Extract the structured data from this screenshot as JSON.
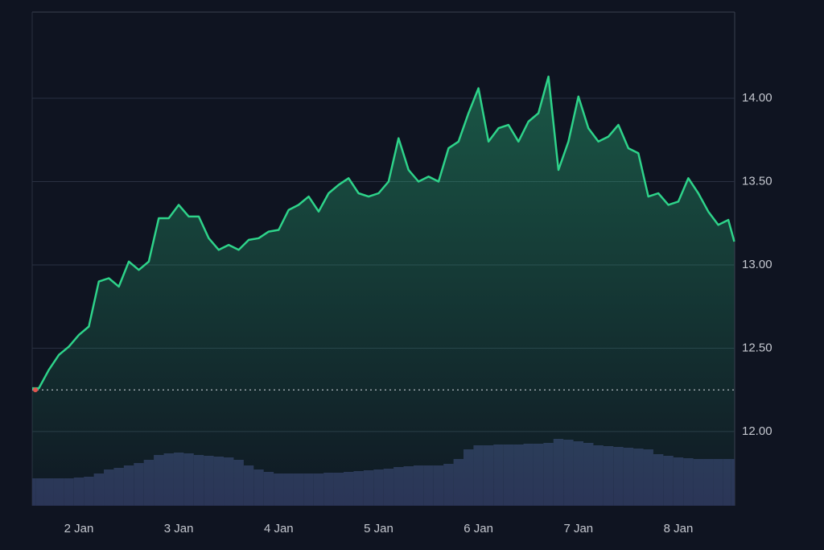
{
  "chart_data": {
    "type": "line",
    "x": [
      1.533,
      1.6,
      1.7,
      1.8,
      1.9,
      2.0,
      2.1,
      2.2,
      2.3,
      2.4,
      2.5,
      2.6,
      2.7,
      2.8,
      2.9,
      3.0,
      3.1,
      3.2,
      3.3,
      3.4,
      3.5,
      3.6,
      3.7,
      3.8,
      3.9,
      4.0,
      4.1,
      4.2,
      4.3,
      4.4,
      4.5,
      4.6,
      4.7,
      4.8,
      4.9,
      5.0,
      5.1,
      5.2,
      5.3,
      5.4,
      5.5,
      5.6,
      5.7,
      5.8,
      5.9,
      6.0,
      6.1,
      6.2,
      6.3,
      6.4,
      6.5,
      6.6,
      6.7,
      6.8,
      6.9,
      7.0,
      7.1,
      7.2,
      7.3,
      7.4,
      7.5,
      7.6,
      7.7,
      7.8,
      7.9,
      8.0,
      8.1,
      8.2,
      8.3,
      8.4,
      8.5,
      8.56
    ],
    "values": [
      12.26,
      12.26,
      12.37,
      12.46,
      12.51,
      12.58,
      12.63,
      12.9,
      12.92,
      12.87,
      13.02,
      12.97,
      13.02,
      13.28,
      13.28,
      13.36,
      13.29,
      13.29,
      13.16,
      13.09,
      13.12,
      13.09,
      13.15,
      13.16,
      13.2,
      13.21,
      13.33,
      13.36,
      13.41,
      13.32,
      13.43,
      13.48,
      13.52,
      13.43,
      13.41,
      13.43,
      13.5,
      13.76,
      13.57,
      13.5,
      13.53,
      13.5,
      13.7,
      13.74,
      13.91,
      14.06,
      13.74,
      13.82,
      13.84,
      13.74,
      13.86,
      13.91,
      14.13,
      13.57,
      13.74,
      14.01,
      13.82,
      13.74,
      13.77,
      13.84,
      13.7,
      13.67,
      13.41,
      13.43,
      13.36,
      13.38,
      13.52,
      13.43,
      13.32,
      13.24,
      13.27,
      13.14
    ],
    "volume": [
      34,
      34,
      34,
      34,
      34,
      35,
      36,
      40,
      45,
      47,
      50,
      53,
      57,
      63,
      65,
      66,
      65,
      63,
      62,
      61,
      60,
      57,
      50,
      45,
      42,
      40,
      40,
      40,
      40,
      40,
      41,
      41,
      42,
      43,
      44,
      45,
      46,
      48,
      49,
      50,
      50,
      50,
      52,
      58,
      70,
      75,
      75,
      76,
      76,
      76,
      77,
      77,
      78,
      83,
      82,
      80,
      78,
      75,
      74,
      73,
      72,
      71,
      70,
      64,
      62,
      60,
      59,
      58,
      58,
      58,
      58,
      58
    ],
    "color": "#2ed38a",
    "volume_color": "#2b3256",
    "baseline": 12.25,
    "xlim": [
      1.533,
      8.564
    ],
    "xticks": [
      {
        "value": 2,
        "label": "2 Jan"
      },
      {
        "value": 3,
        "label": "3 Jan"
      },
      {
        "value": 4,
        "label": "4 Jan"
      },
      {
        "value": 5,
        "label": "5 Jan"
      },
      {
        "value": 6,
        "label": "6 Jan"
      },
      {
        "value": 7,
        "label": "7 Jan"
      },
      {
        "value": 8,
        "label": "8 Jan"
      }
    ],
    "ylim": [
      11.555,
      14.517
    ],
    "yticks": [
      {
        "value": 12,
        "label": "12.00"
      },
      {
        "value": 12.5,
        "label": "12.50"
      },
      {
        "value": 13,
        "label": "13.00"
      },
      {
        "value": 13.5,
        "label": "13.50"
      },
      {
        "value": 14,
        "label": "14.00"
      }
    ],
    "volume_lim": [
      0,
      100
    ],
    "grid": true
  }
}
